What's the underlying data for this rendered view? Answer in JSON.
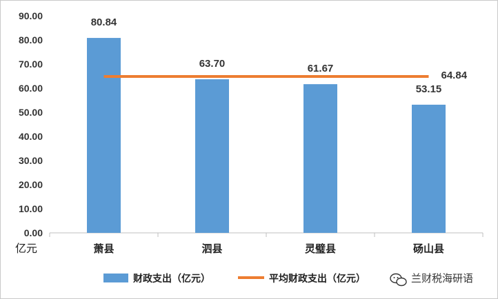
{
  "chart_data": {
    "type": "bar",
    "categories": [
      "萧县",
      "泗县",
      "灵璧县",
      "砀山县"
    ],
    "series": [
      {
        "name": "财政支出（亿元）",
        "type": "bar",
        "values": [
          80.84,
          63.7,
          61.67,
          53.15
        ],
        "labels": [
          "80.84",
          "63.70",
          "61.67",
          "53.15"
        ],
        "color": "#5b9bd5"
      },
      {
        "name": "平均财政支出（亿元）",
        "type": "line",
        "value": 64.84,
        "label": "64.84",
        "color": "#ed7d31"
      }
    ],
    "yticks": [
      "0.00",
      "10.00",
      "20.00",
      "30.00",
      "40.00",
      "50.00",
      "60.00",
      "70.00",
      "80.00",
      "90.00"
    ],
    "ylim": [
      0,
      90
    ],
    "yunit": "亿元",
    "legend_position": "bottom",
    "grid": false
  },
  "watermark": {
    "text": "兰财税海研语",
    "icon": "wechat-icon"
  }
}
